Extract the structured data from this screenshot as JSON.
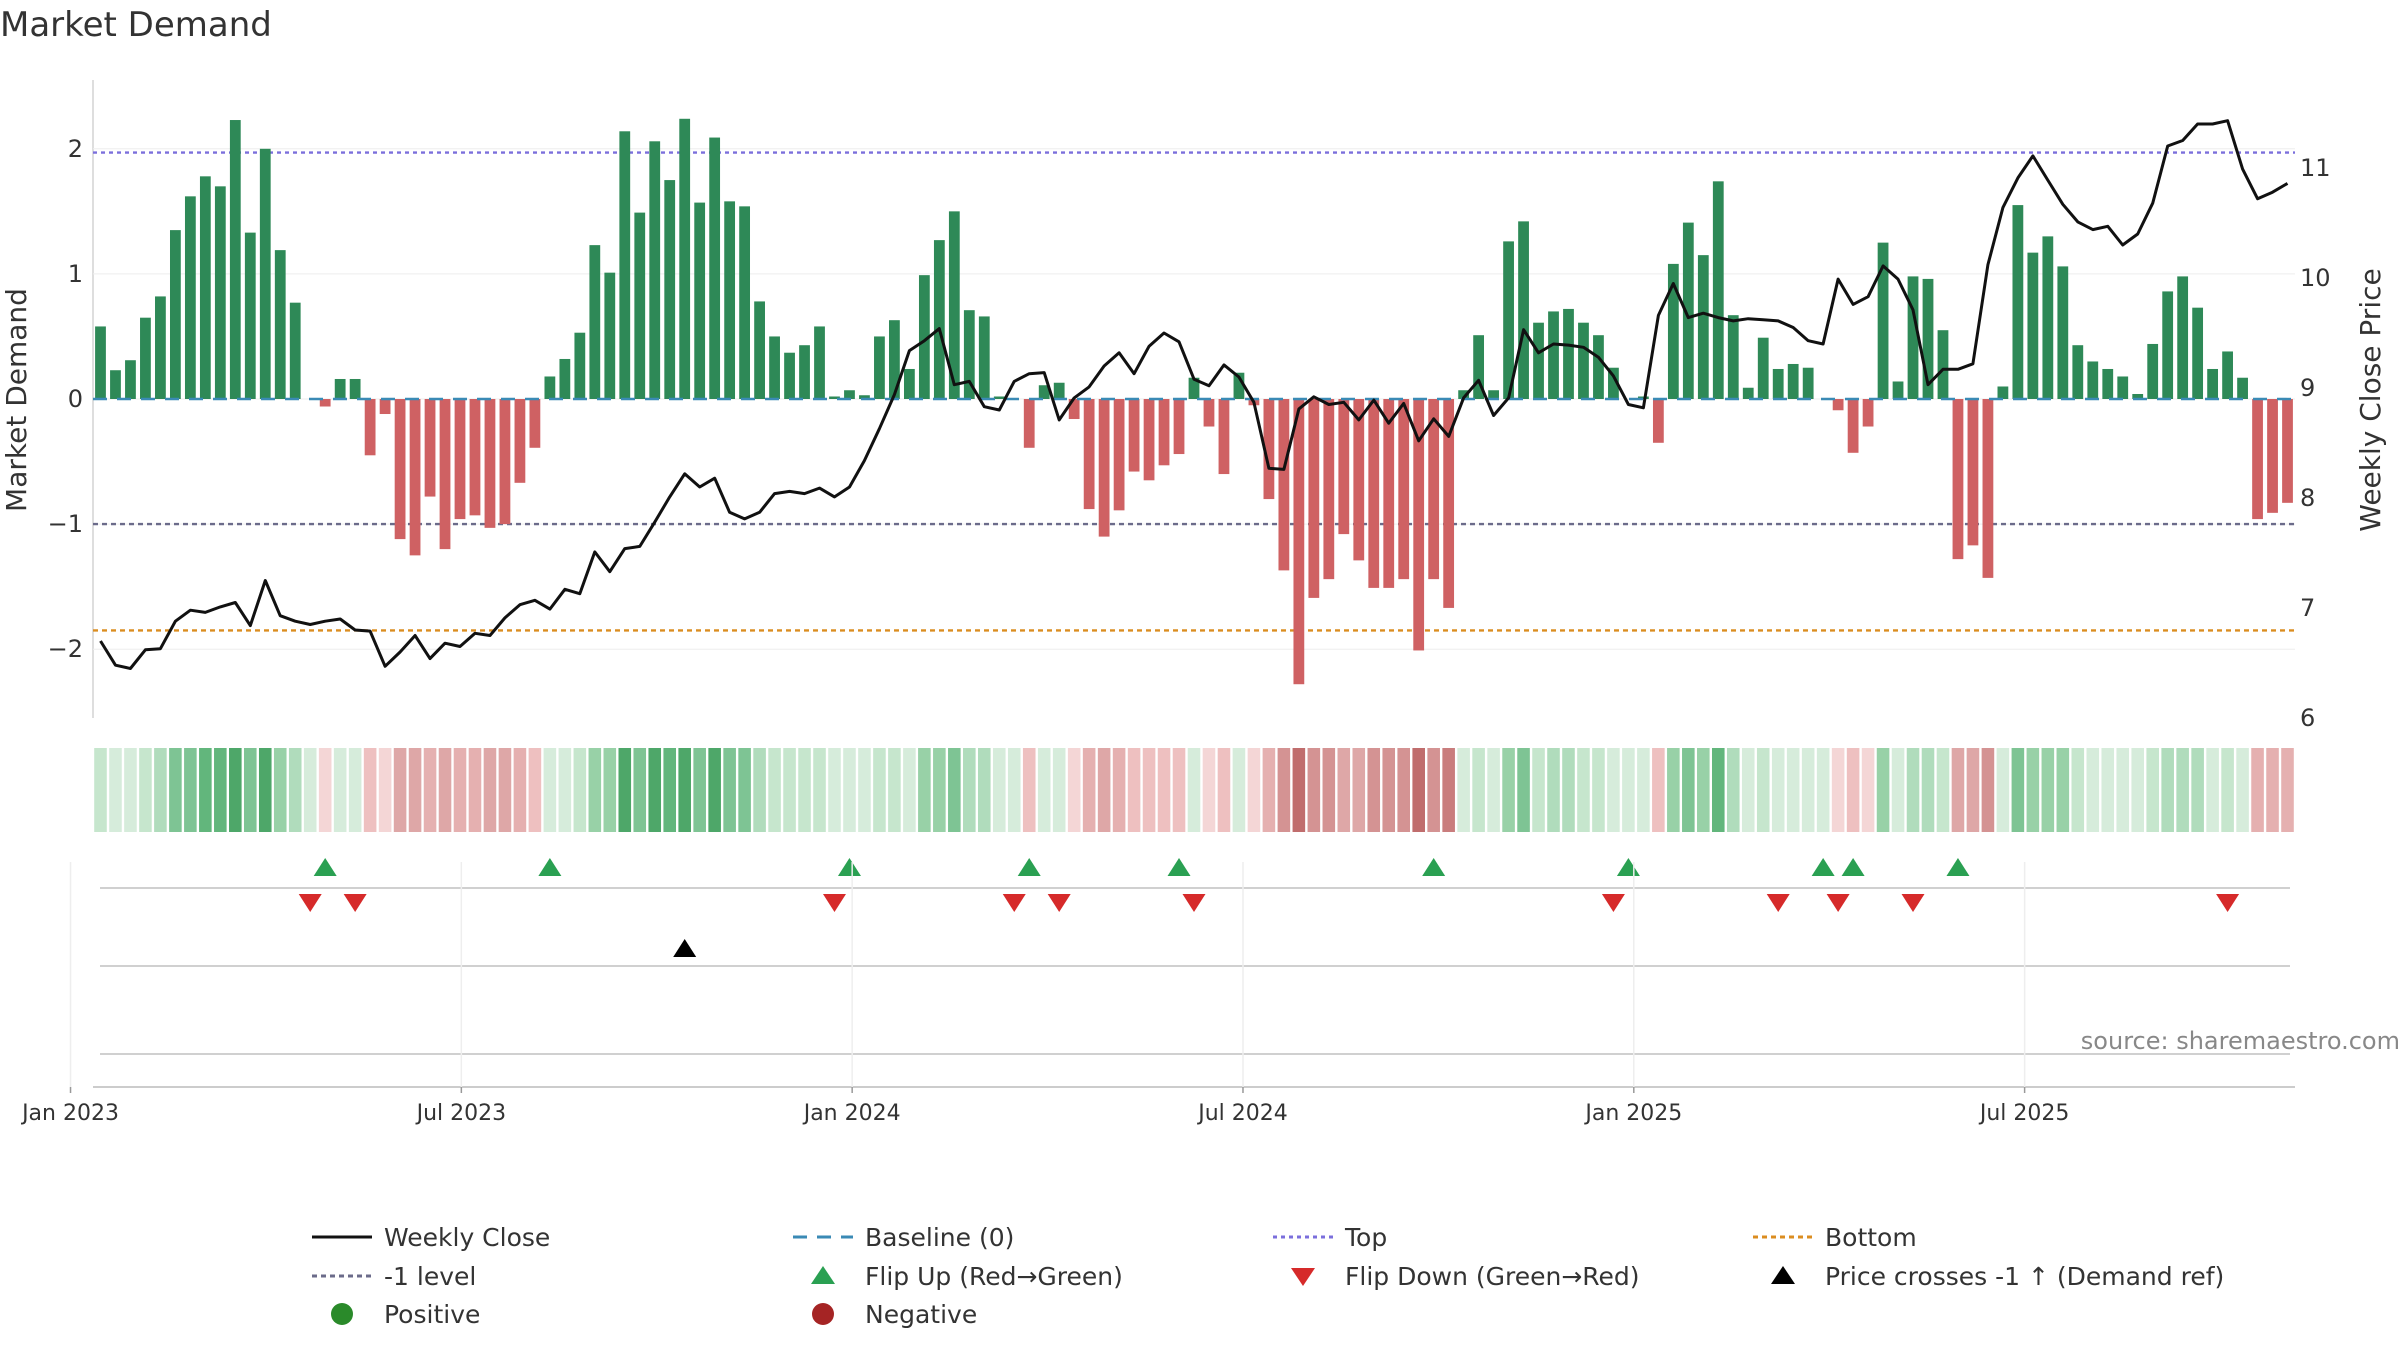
{
  "chart_data": {
    "type": "bar",
    "title": "Market Demand",
    "ylabel": "Market Demand",
    "y2label": "Weekly Close Price",
    "ylim": [
      -2.55,
      2.55
    ],
    "y2lim": [
      6.0,
      11.8
    ],
    "yticks": [
      "2",
      "1",
      "0",
      "−1",
      "−2"
    ],
    "y2ticks": [
      "11",
      "10",
      "9",
      "8",
      "7",
      "6"
    ],
    "top_level": 1.97,
    "bottom_level": -1.85,
    "xticks": [
      "Jan 2023",
      "Jul 2023",
      "Jan 2024",
      "Jul 2024",
      "Jan 2025",
      "Jul 2025"
    ],
    "start_week_offset": -2,
    "demand": [
      0.58,
      0.23,
      0.31,
      0.65,
      0.82,
      1.35,
      1.62,
      1.78,
      1.7,
      2.23,
      1.33,
      2.0,
      1.19,
      0.77,
      0.0,
      -0.06,
      0.16,
      0.16,
      -0.45,
      -0.12,
      -1.12,
      -1.25,
      -0.78,
      -1.2,
      -0.96,
      -0.93,
      -1.03,
      -1.0,
      -0.67,
      -0.39,
      0.18,
      0.32,
      0.53,
      1.23,
      1.01,
      2.14,
      1.49,
      2.06,
      1.75,
      2.24,
      1.57,
      2.09,
      1.58,
      1.54,
      0.78,
      0.5,
      0.37,
      0.43,
      0.58,
      0.02,
      0.07,
      0.03,
      0.5,
      0.63,
      0.24,
      0.99,
      1.27,
      1.5,
      0.71,
      0.66,
      0.02,
      0.0,
      -0.39,
      0.11,
      0.13,
      -0.16,
      -0.88,
      -1.1,
      -0.89,
      -0.58,
      -0.65,
      -0.53,
      -0.44,
      0.17,
      -0.22,
      -0.6,
      0.21,
      -0.05,
      -0.8,
      -1.37,
      -2.28,
      -1.59,
      -1.44,
      -1.08,
      -1.29,
      -1.51,
      -1.51,
      -1.44,
      -2.01,
      -1.44,
      -1.67,
      0.07,
      0.51,
      0.07,
      1.26,
      1.42,
      0.61,
      0.7,
      0.72,
      0.61,
      0.51,
      0.25,
      0.0,
      0.02,
      -0.35,
      1.08,
      1.41,
      1.15,
      1.74,
      0.67,
      0.09,
      0.49,
      0.24,
      0.28,
      0.25,
      0.0,
      -0.09,
      -0.43,
      -0.22,
      1.25,
      0.14,
      0.98,
      0.96,
      0.55,
      -1.28,
      -1.17,
      -1.43,
      0.1,
      1.55,
      1.17,
      1.3,
      1.06,
      0.43,
      0.3,
      0.24,
      0.18,
      0.04,
      0.44,
      0.86,
      0.98,
      0.73,
      0.24,
      0.38,
      0.17,
      -0.96,
      -0.91,
      -0.83
    ],
    "price": [
      6.7,
      6.48,
      6.45,
      6.62,
      6.63,
      6.88,
      6.98,
      6.96,
      7.01,
      7.05,
      6.84,
      7.25,
      6.93,
      6.88,
      6.85,
      6.88,
      6.9,
      6.8,
      6.79,
      6.47,
      6.6,
      6.75,
      6.54,
      6.68,
      6.65,
      6.77,
      6.75,
      6.91,
      7.03,
      7.07,
      6.99,
      7.17,
      7.13,
      7.51,
      7.33,
      7.54,
      7.56,
      7.78,
      8.01,
      8.22,
      8.1,
      8.18,
      7.87,
      7.81,
      7.87,
      8.04,
      8.06,
      8.04,
      8.09,
      8.01,
      8.1,
      8.34,
      8.63,
      8.94,
      9.34,
      9.43,
      9.54,
      9.03,
      9.06,
      8.83,
      8.8,
      9.06,
      9.13,
      9.14,
      8.71,
      8.91,
      9.01,
      9.2,
      9.32,
      9.13,
      9.38,
      9.5,
      9.42,
      9.08,
      9.02,
      9.21,
      9.1,
      8.87,
      8.27,
      8.26,
      8.81,
      8.92,
      8.85,
      8.87,
      8.71,
      8.89,
      8.68,
      8.86,
      8.52,
      8.72,
      8.56,
      8.91,
      9.07,
      8.75,
      8.91,
      9.53,
      9.32,
      9.4,
      9.39,
      9.37,
      9.28,
      9.11,
      8.85,
      8.82,
      9.66,
      9.95,
      9.64,
      9.68,
      9.64,
      9.61,
      9.63,
      9.62,
      9.61,
      9.55,
      9.43,
      9.4,
      9.99,
      9.76,
      9.83,
      10.11,
      9.99,
      9.71,
      9.03,
      9.17,
      9.17,
      9.22,
      10.12,
      10.64,
      10.91,
      11.11,
      10.89,
      10.67,
      10.51,
      10.44,
      10.47,
      10.3,
      10.4,
      10.68,
      11.2,
      11.25,
      11.4,
      11.4,
      11.43,
      10.99,
      10.72,
      10.78,
      10.86
    ],
    "flip_up_weeks": [
      15,
      30,
      50,
      62,
      72,
      89,
      102,
      115,
      117,
      124
    ],
    "flip_down_weeks": [
      14,
      17,
      49,
      61,
      64,
      73,
      101,
      112,
      116,
      121,
      142
    ],
    "price_cross_weeks": [
      39
    ],
    "source": "source: sharemaestro.com",
    "legend": [
      "Weekly Close",
      "Baseline (0)",
      "Top",
      "Bottom",
      "-1 level",
      "Flip Up (Red→Green)",
      "Flip Down (Green→Red)",
      "Price crosses -1 ↑ (Demand ref)",
      "Positive",
      "Negative"
    ],
    "colors": {
      "positive": "#2e8957",
      "negative": "#cf6163",
      "price": "#111111",
      "baseline": "#3a8ab5",
      "top": "#7b6fdc",
      "bottom": "#db8d20",
      "minus1": "#6b6b8a",
      "flip_up": "#2aa052",
      "flip_down": "#d62a2a",
      "cross": "#000000",
      "positive_dot": "#2a8a2a",
      "negative_dot": "#a52424"
    }
  }
}
